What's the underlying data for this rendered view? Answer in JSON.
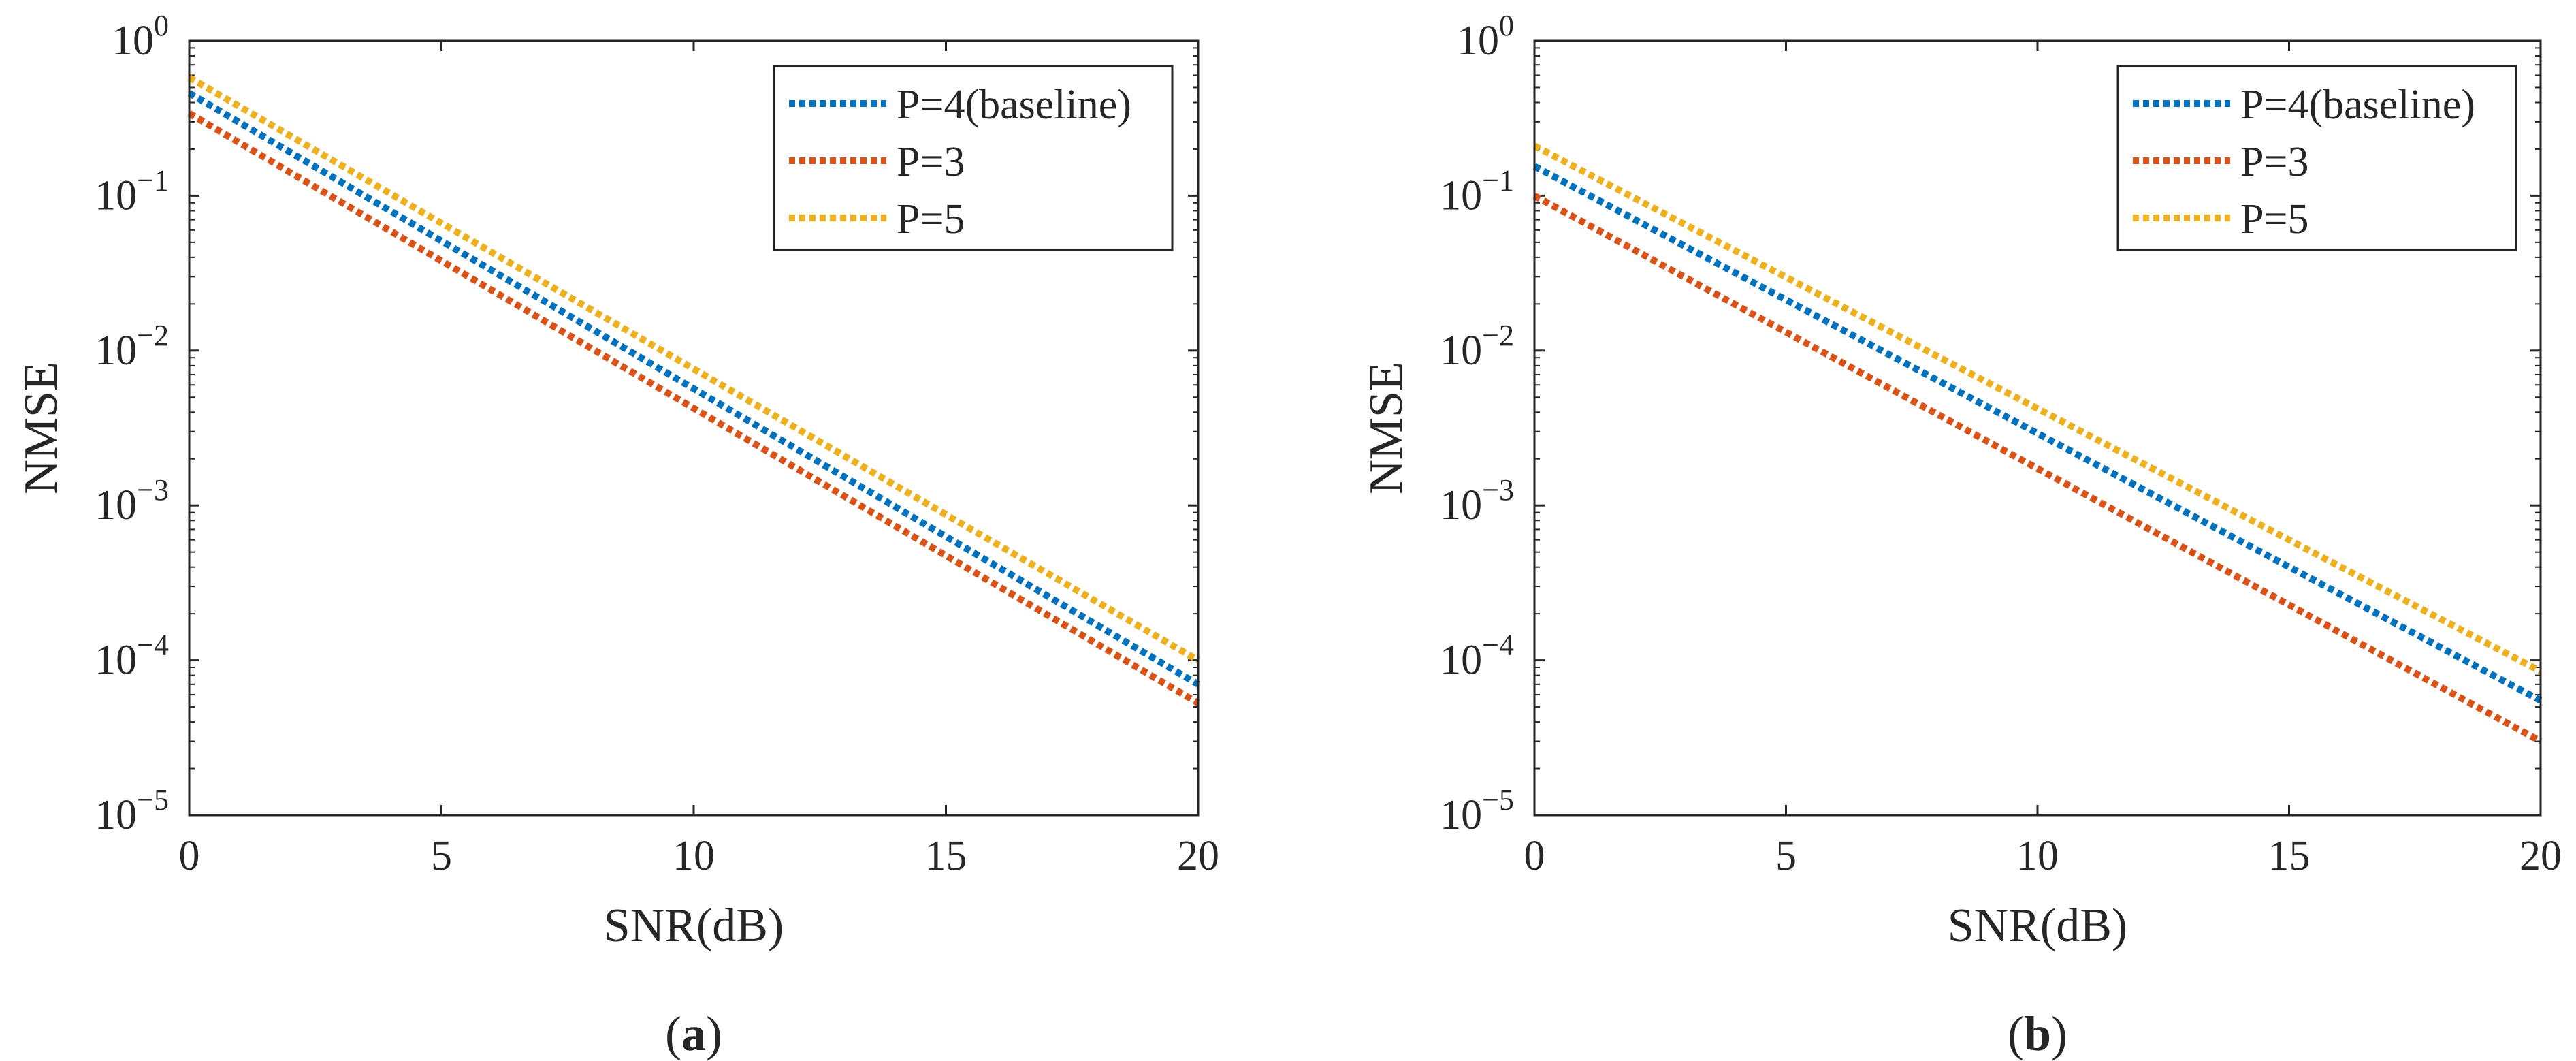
{
  "chart_data": [
    {
      "type": "line",
      "panel_label": "(a)",
      "xlabel": "SNR(dB)",
      "ylabel": "NMSE",
      "y_scale": "log",
      "xlim": [
        0,
        20
      ],
      "ylim": [
        1e-05,
        1
      ],
      "x_ticks": [
        0,
        5,
        10,
        15,
        20
      ],
      "y_ticks": [
        {
          "value": 1,
          "base": "10",
          "exp": "0"
        },
        {
          "value": 0.1,
          "base": "10",
          "exp": "−1"
        },
        {
          "value": 0.01,
          "base": "10",
          "exp": "−2"
        },
        {
          "value": 0.001,
          "base": "10",
          "exp": "−3"
        },
        {
          "value": 0.0001,
          "base": "10",
          "exp": "−4"
        },
        {
          "value": 1e-05,
          "base": "10",
          "exp": "−5"
        }
      ],
      "legend_position": "top-right",
      "series": [
        {
          "name": "P=4(baseline)",
          "color": "#0072BD",
          "x": [
            0,
            20
          ],
          "y": [
            0.46,
            7e-05
          ]
        },
        {
          "name": "P=3",
          "color": "#D95319",
          "x": [
            0,
            20
          ],
          "y": [
            0.34,
            5.3e-05
          ]
        },
        {
          "name": "P=5",
          "color": "#EDB120",
          "x": [
            0,
            20
          ],
          "y": [
            0.58,
            0.0001
          ]
        }
      ]
    },
    {
      "type": "line",
      "panel_label": "(b)",
      "xlabel": "SNR(dB)",
      "ylabel": "NMSE",
      "y_scale": "log",
      "xlim": [
        0,
        20
      ],
      "ylim": [
        1e-05,
        1
      ],
      "x_ticks": [
        0,
        5,
        10,
        15,
        20
      ],
      "y_ticks": [
        {
          "value": 1,
          "base": "10",
          "exp": "0"
        },
        {
          "value": 0.1,
          "base": "10",
          "exp": "−1"
        },
        {
          "value": 0.01,
          "base": "10",
          "exp": "−2"
        },
        {
          "value": 0.001,
          "base": "10",
          "exp": "−3"
        },
        {
          "value": 0.0001,
          "base": "10",
          "exp": "−4"
        },
        {
          "value": 1e-05,
          "base": "10",
          "exp": "−5"
        }
      ],
      "legend_position": "top-right",
      "series": [
        {
          "name": "P=4(baseline)",
          "color": "#0072BD",
          "x": [
            0,
            20
          ],
          "y": [
            0.155,
            5.5e-05
          ]
        },
        {
          "name": "P=3",
          "color": "#D95319",
          "x": [
            0,
            20
          ],
          "y": [
            0.1,
            3e-05
          ]
        },
        {
          "name": "P=5",
          "color": "#EDB120",
          "x": [
            0,
            20
          ],
          "y": [
            0.21,
            8.5e-05
          ]
        }
      ]
    }
  ]
}
